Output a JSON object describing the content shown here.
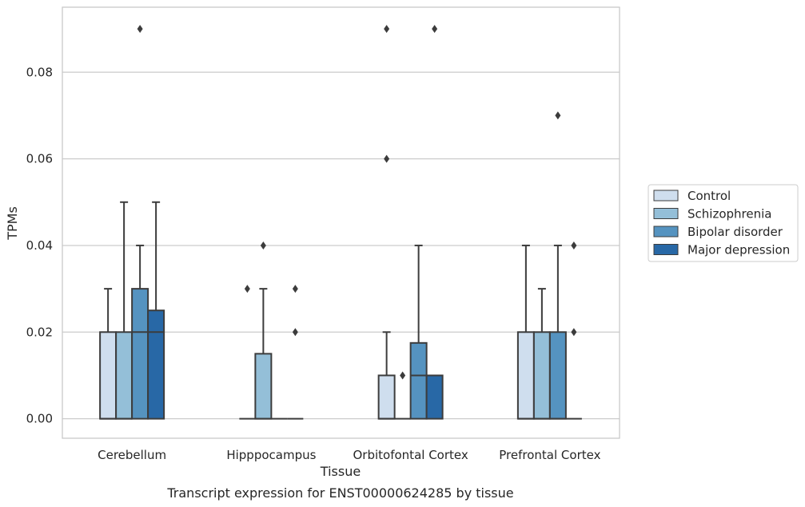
{
  "caption": "Transcript expression for ENST00000624285 by tissue",
  "colors": {
    "Control": "#cfdeee",
    "Schizophrenia": "#94bfd8",
    "Bipolar disorder": "#5593c0",
    "Major depression": "#2868a6",
    "edge": "#3c3c3c",
    "grid": "#cccccc",
    "axes": "#c8c8c8"
  },
  "chart_data": {
    "type": "box",
    "title": "",
    "xlabel": "Tissue",
    "ylabel": "TPMs",
    "ylim": [
      -0.0045,
      0.095
    ],
    "yticks": [
      0.0,
      0.02,
      0.04,
      0.06,
      0.08
    ],
    "ytick_labels": [
      "0.00",
      "0.02",
      "0.04",
      "0.06",
      "0.08"
    ],
    "grid": true,
    "legend_position": "right",
    "categories": [
      "Cerebellum",
      "Hipppocampus",
      "Orbitofontal Cortex",
      "Prefrontal Cortex"
    ],
    "series": [
      {
        "name": "Control",
        "boxes": [
          {
            "q1": 0.0,
            "median": 0.0,
            "q3": 0.02,
            "whisker_low": 0.0,
            "whisker_high": 0.03,
            "outliers": []
          },
          {
            "q1": 0.0,
            "median": 0.0,
            "q3": 0.0,
            "whisker_low": 0.0,
            "whisker_high": 0.0,
            "outliers": [
              0.03
            ]
          },
          {
            "q1": 0.0,
            "median": 0.0,
            "q3": 0.01,
            "whisker_low": 0.0,
            "whisker_high": 0.02,
            "outliers": [
              0.06,
              0.09
            ]
          },
          {
            "q1": 0.0,
            "median": 0.0,
            "q3": 0.02,
            "whisker_low": 0.0,
            "whisker_high": 0.04,
            "outliers": []
          }
        ]
      },
      {
        "name": "Schizophrenia",
        "boxes": [
          {
            "q1": 0.0,
            "median": 0.0,
            "q3": 0.02,
            "whisker_low": 0.0,
            "whisker_high": 0.05,
            "outliers": []
          },
          {
            "q1": 0.0,
            "median": 0.0,
            "q3": 0.015,
            "whisker_low": 0.0,
            "whisker_high": 0.03,
            "outliers": [
              0.04
            ]
          },
          {
            "q1": 0.0,
            "median": 0.0,
            "q3": 0.0,
            "whisker_low": 0.0,
            "whisker_high": 0.0,
            "outliers": [
              0.01
            ]
          },
          {
            "q1": 0.0,
            "median": 0.0,
            "q3": 0.02,
            "whisker_low": 0.0,
            "whisker_high": 0.03,
            "outliers": []
          }
        ]
      },
      {
        "name": "Bipolar disorder",
        "boxes": [
          {
            "q1": 0.0,
            "median": 0.02,
            "q3": 0.03,
            "whisker_low": 0.0,
            "whisker_high": 0.04,
            "outliers": [
              0.09
            ]
          },
          {
            "q1": 0.0,
            "median": 0.0,
            "q3": 0.0,
            "whisker_low": 0.0,
            "whisker_high": 0.0,
            "outliers": []
          },
          {
            "q1": 0.0,
            "median": 0.01,
            "q3": 0.0175,
            "whisker_low": 0.0,
            "whisker_high": 0.04,
            "outliers": []
          },
          {
            "q1": 0.0,
            "median": 0.0,
            "q3": 0.02,
            "whisker_low": 0.0,
            "whisker_high": 0.04,
            "outliers": [
              0.07
            ]
          }
        ]
      },
      {
        "name": "Major depression",
        "boxes": [
          {
            "q1": 0.0,
            "median": 0.02,
            "q3": 0.025,
            "whisker_low": 0.0,
            "whisker_high": 0.05,
            "outliers": []
          },
          {
            "q1": 0.0,
            "median": 0.0,
            "q3": 0.0,
            "whisker_low": 0.0,
            "whisker_high": 0.0,
            "outliers": [
              0.02,
              0.03
            ]
          },
          {
            "q1": 0.0,
            "median": 0.01,
            "q3": 0.01,
            "whisker_low": 0.0,
            "whisker_high": 0.01,
            "outliers": [
              0.09
            ]
          },
          {
            "q1": 0.0,
            "median": 0.0,
            "q3": 0.0,
            "whisker_low": 0.0,
            "whisker_high": 0.0,
            "outliers": [
              0.02,
              0.04
            ]
          }
        ]
      }
    ]
  }
}
